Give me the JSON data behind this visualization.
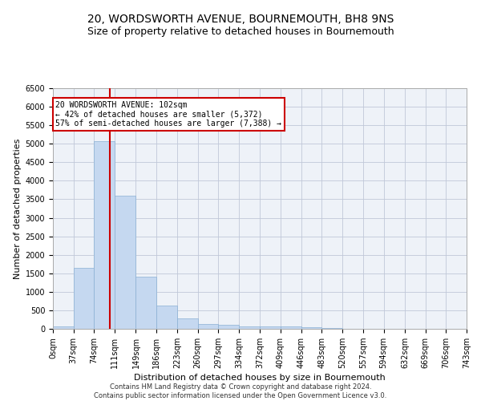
{
  "title": "20, WORDSWORTH AVENUE, BOURNEMOUTH, BH8 9NS",
  "subtitle": "Size of property relative to detached houses in Bournemouth",
  "xlabel": "Distribution of detached houses by size in Bournemouth",
  "ylabel": "Number of detached properties",
  "footer_line1": "Contains HM Land Registry data © Crown copyright and database right 2024.",
  "footer_line2": "Contains public sector information licensed under the Open Government Licence v3.0.",
  "bar_edges": [
    0,
    37,
    74,
    111,
    149,
    186,
    223,
    260,
    297,
    334,
    372,
    409,
    446,
    483,
    520,
    557,
    594,
    632,
    669,
    706,
    743
  ],
  "bar_heights": [
    65,
    1650,
    5070,
    3590,
    1400,
    620,
    290,
    135,
    100,
    70,
    55,
    55,
    40,
    20,
    10,
    5,
    5,
    3,
    2,
    2
  ],
  "bar_color": "#c5d8f0",
  "bar_edge_color": "#8ab0d4",
  "grid_color": "#c0c8d8",
  "vline_x": 102,
  "vline_color": "#cc0000",
  "annotation_text": "20 WORDSWORTH AVENUE: 102sqm\n← 42% of detached houses are smaller (5,372)\n57% of semi-detached houses are larger (7,388) →",
  "annotation_box_color": "#ffffff",
  "annotation_box_edge": "#cc0000",
  "ylim": [
    0,
    6500
  ],
  "yticks": [
    0,
    500,
    1000,
    1500,
    2000,
    2500,
    3000,
    3500,
    4000,
    4500,
    5000,
    5500,
    6000,
    6500
  ],
  "tick_labels": [
    "0sqm",
    "37sqm",
    "74sqm",
    "111sqm",
    "149sqm",
    "186sqm",
    "223sqm",
    "260sqm",
    "297sqm",
    "334sqm",
    "372sqm",
    "409sqm",
    "446sqm",
    "483sqm",
    "520sqm",
    "557sqm",
    "594sqm",
    "632sqm",
    "669sqm",
    "706sqm",
    "743sqm"
  ],
  "background_color": "#eef2f8",
  "title_fontsize": 10,
  "subtitle_fontsize": 9,
  "axis_label_fontsize": 8,
  "tick_fontsize": 7,
  "footer_fontsize": 6
}
